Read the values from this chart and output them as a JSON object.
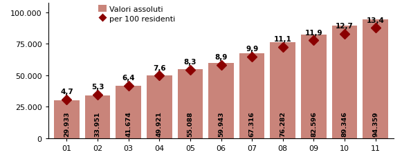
{
  "categories": [
    "01",
    "02",
    "03",
    "04",
    "05",
    "06",
    "07",
    "08",
    "09",
    "10",
    "11"
  ],
  "bar_values": [
    29933,
    33951,
    41674,
    49921,
    55088,
    59943,
    67316,
    76282,
    82596,
    89346,
    94359
  ],
  "bar_labels": [
    "29.933",
    "33.951",
    "41.674",
    "49.921",
    "55.088",
    "59.943",
    "67.316",
    "76.282",
    "82.596",
    "89.346",
    "94.359"
  ],
  "line_values": [
    4.7,
    5.3,
    6.4,
    7.6,
    8.3,
    8.9,
    9.9,
    11.1,
    11.9,
    12.7,
    13.4
  ],
  "line_labels": [
    "4,7",
    "5,3",
    "6,4",
    "7,6",
    "8,3",
    "8,9",
    "9,9",
    "11,1",
    "11,9",
    "12,7",
    "13,4"
  ],
  "bar_color": "#c9847a",
  "line_color": "#8b0000",
  "marker_color": "#8b0000",
  "ylim_left": [
    0,
    108000
  ],
  "yticks_left": [
    0,
    25000,
    50000,
    75000,
    100000
  ],
  "ytick_labels_left": [
    "0",
    "25.000",
    "50.000",
    "75.000",
    "100.000"
  ],
  "line_scale_max": 16.5,
  "legend_label_bar": "Valori assoluti",
  "legend_label_line": "per 100 residenti",
  "bar_label_fontsize": 6.8,
  "line_label_fontsize": 7.5,
  "tick_fontsize": 8,
  "legend_fontsize": 8
}
